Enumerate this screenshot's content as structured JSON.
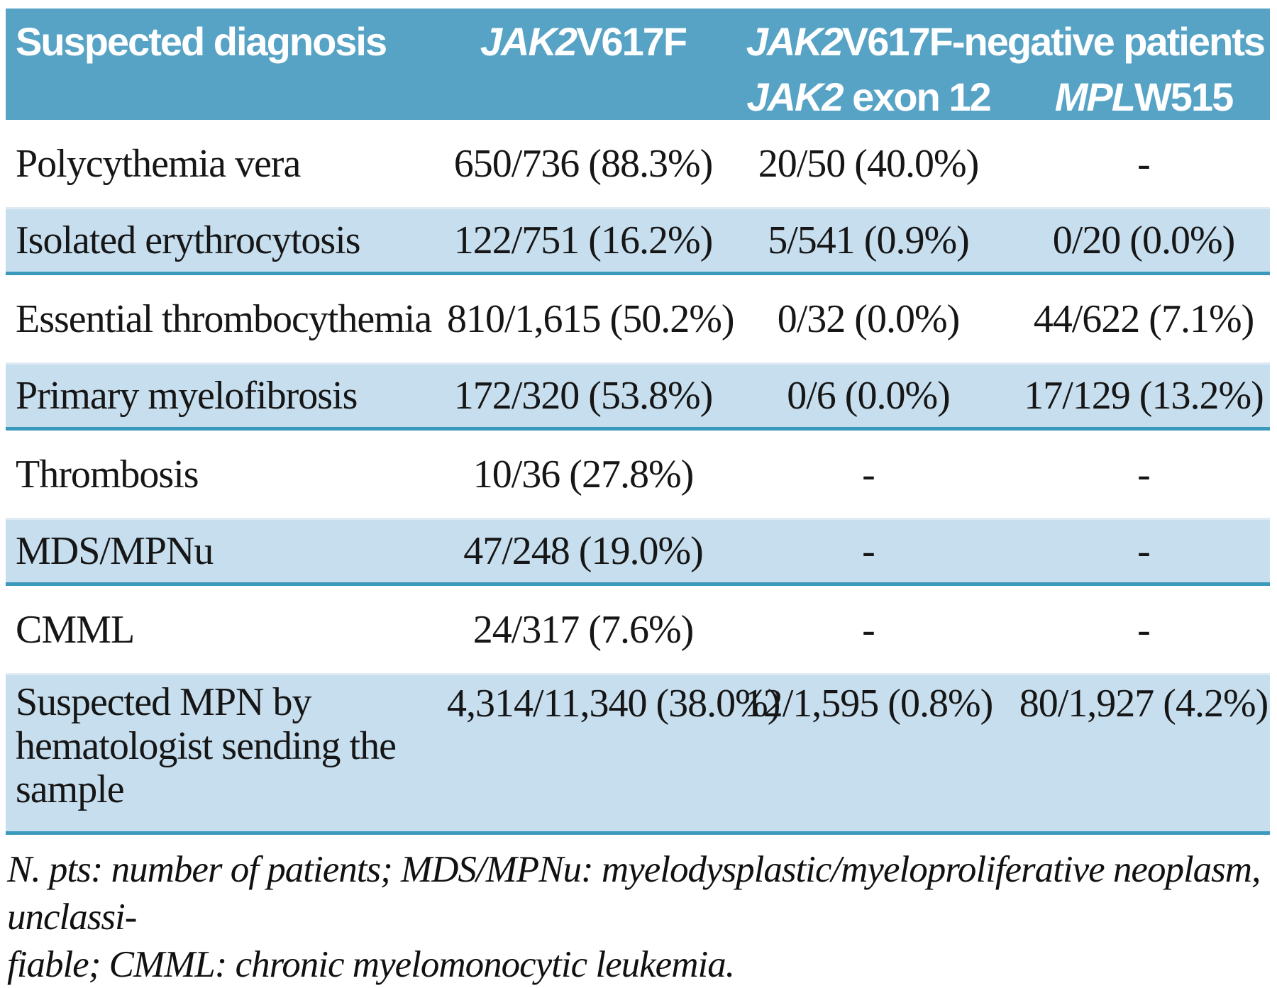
{
  "colors": {
    "header_bg": "#57a3c5",
    "header_text": "#ffffff",
    "stripe_bg": "#c7deee",
    "stripe_border": "#3b99bc",
    "white_row_divider": "#dfeaf3",
    "body_text": "#161616"
  },
  "table": {
    "header": {
      "suspected_diagnosis": "Suspected diagnosis",
      "jak2v617f_gene": "JAK2",
      "jak2v617f_rest": "V617F",
      "negative_group_gene": "JAK2",
      "negative_group_rest": "V617F-negative patients",
      "exon12_gene": "JAK2",
      "exon12_rest": " exon 12",
      "mplw515_gene": "MPL",
      "mplw515_rest": "W515"
    },
    "rows": [
      {
        "diagnosis": "Polycythemia vera",
        "jak2v617f": "650/736 (88.3%)",
        "jak2_exon12": "20/50 (40.0%)",
        "mplw515": "-"
      },
      {
        "diagnosis": "Isolated erythrocytosis",
        "jak2v617f": "122/751 (16.2%)",
        "jak2_exon12": "5/541 (0.9%)",
        "mplw515": "0/20 (0.0%)"
      },
      {
        "diagnosis": "Essential thrombocythemia",
        "jak2v617f": "810/1,615 (50.2%)",
        "jak2_exon12": "0/32 (0.0%)",
        "mplw515": "44/622 (7.1%)"
      },
      {
        "diagnosis": "Primary myelofibrosis",
        "jak2v617f": "172/320 (53.8%)",
        "jak2_exon12": "0/6 (0.0%)",
        "mplw515": "17/129 (13.2%)"
      },
      {
        "diagnosis": "Thrombosis",
        "jak2v617f": "10/36 (27.8%)",
        "jak2_exon12": "-",
        "mplw515": "-"
      },
      {
        "diagnosis": "MDS/MPNu",
        "jak2v617f": "47/248 (19.0%)",
        "jak2_exon12": "-",
        "mplw515": "-"
      },
      {
        "diagnosis": "CMML",
        "jak2v617f": "24/317 (7.6%)",
        "jak2_exon12": "-",
        "mplw515": "-"
      },
      {
        "diagnosis": "Suspected MPN by hematologist sending the sample",
        "jak2v617f": "4,314/11,340 (38.0%)",
        "jak2_exon12": "12/1,595 (0.8%)",
        "mplw515": "80/1,927 (4.2%)"
      }
    ]
  },
  "footnote": {
    "line1": "N. pts: number of patients; MDS/MPNu: myelodysplastic/myeloproliferative neoplasm, unclassi-",
    "line2": "fiable; CMML: chronic myelomonocytic leukemia."
  }
}
